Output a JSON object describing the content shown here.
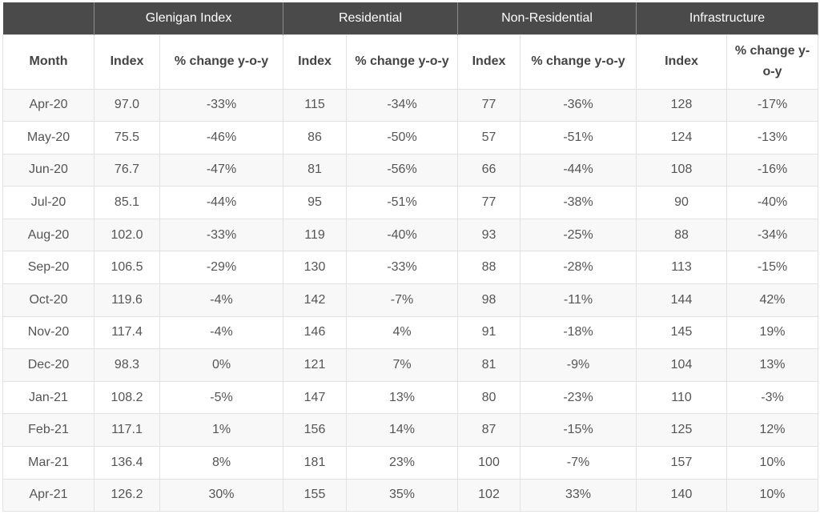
{
  "chart_data": {
    "type": "table",
    "groups": [
      "Glenigan Index",
      "Residential",
      "Non-Residential",
      "Infrastructure"
    ],
    "columns": [
      "Month",
      "Index",
      "% change y-o-y",
      "Index",
      "% change y-o-y",
      "Index",
      "% change y-o-y",
      "Index",
      "% change y-o-y"
    ],
    "rows": [
      [
        "Apr-20",
        "97.0",
        "-33%",
        "115",
        "-34%",
        "77",
        "-36%",
        "128",
        "-17%"
      ],
      [
        "May-20",
        "75.5",
        "-46%",
        "86",
        "-50%",
        "57",
        "-51%",
        "124",
        "-13%"
      ],
      [
        "Jun-20",
        "76.7",
        "-47%",
        "81",
        "-56%",
        "66",
        "-44%",
        "108",
        "-16%"
      ],
      [
        "Jul-20",
        "85.1",
        "-44%",
        "95",
        "-51%",
        "77",
        "-38%",
        "90",
        "-40%"
      ],
      [
        "Aug-20",
        "102.0",
        "-33%",
        "119",
        "-40%",
        "93",
        "-25%",
        "88",
        "-34%"
      ],
      [
        "Sep-20",
        "106.5",
        "-29%",
        "130",
        "-33%",
        "88",
        "-28%",
        "113",
        "-15%"
      ],
      [
        "Oct-20",
        "119.6",
        "-4%",
        "142",
        "-7%",
        "98",
        "-11%",
        "144",
        "42%"
      ],
      [
        "Nov-20",
        "117.4",
        "-4%",
        "146",
        "4%",
        "91",
        "-18%",
        "145",
        "19%"
      ],
      [
        "Dec-20",
        "98.3",
        "0%",
        "121",
        "7%",
        "81",
        "-9%",
        "104",
        "13%"
      ],
      [
        "Jan-21",
        "108.2",
        "-5%",
        "147",
        "13%",
        "80",
        "-23%",
        "110",
        "-3%"
      ],
      [
        "Feb-21",
        "117.1",
        "1%",
        "156",
        "14%",
        "87",
        "-15%",
        "125",
        "12%"
      ],
      [
        "Mar-21",
        "136.4",
        "8%",
        "181",
        "23%",
        "100",
        "-7%",
        "157",
        "10%"
      ],
      [
        "Apr-21",
        "126.2",
        "30%",
        "155",
        "35%",
        "102",
        "33%",
        "140",
        "10%"
      ]
    ]
  }
}
